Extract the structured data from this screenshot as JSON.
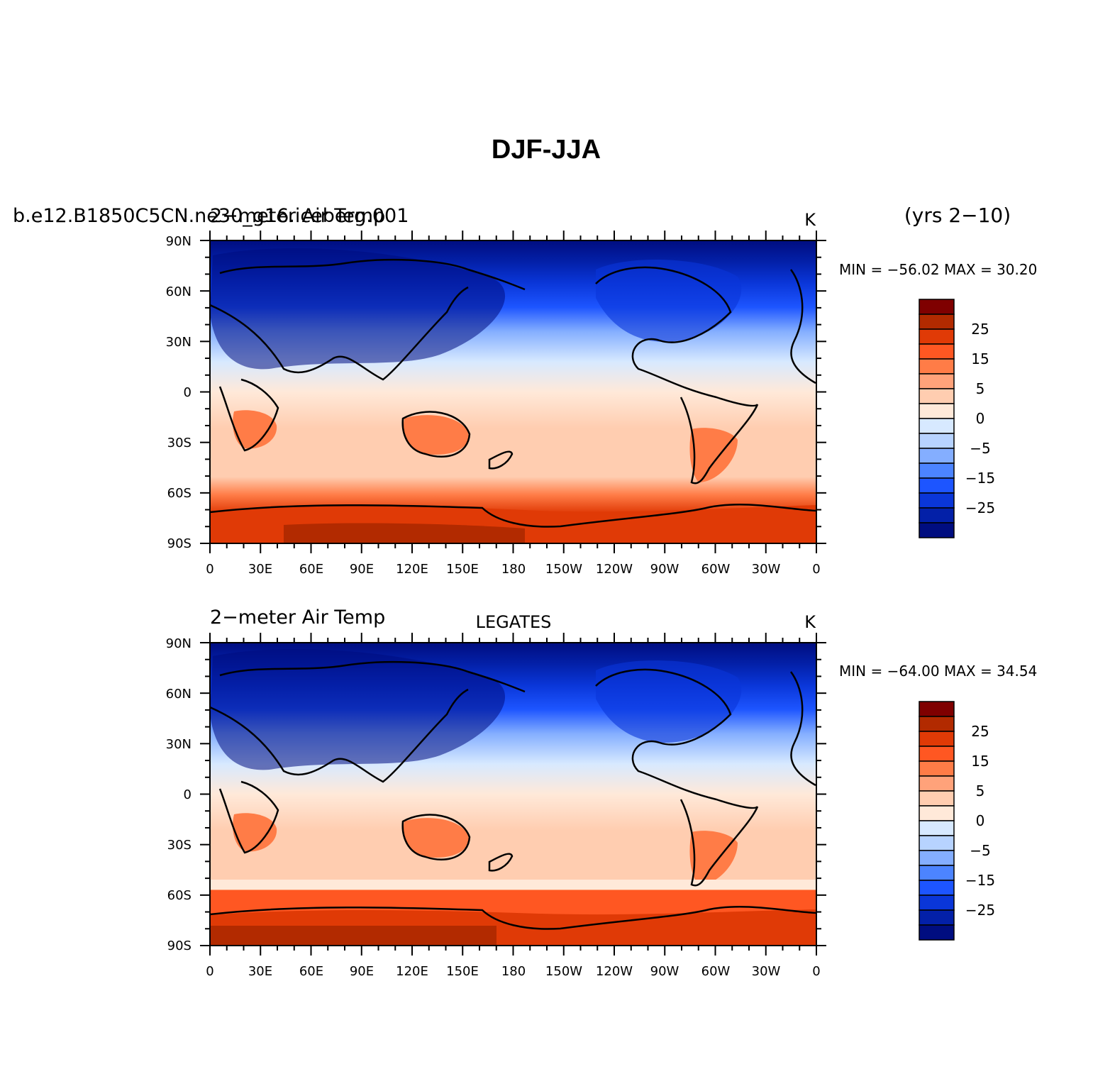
{
  "figure": {
    "title": "DJF-JJA",
    "period": "(yrs 2−10)"
  },
  "panels": [
    {
      "id": "model",
      "left_title": "2−meter Air Temp",
      "left_title_overprint": "b.e12.B1850C5CN.ne30_g16.iceberg.001",
      "center_title": "",
      "units": "K",
      "stats": "MIN = −56.02  MAX =   30.20"
    },
    {
      "id": "obs",
      "left_title": "2−meter Air Temp",
      "center_title": "LEGATES",
      "units": "K",
      "stats": "MIN = −64.00  MAX =   34.54"
    }
  ],
  "axes": {
    "lat_labels": [
      "90N",
      "60N",
      "30N",
      "0",
      "30S",
      "60S",
      "90S"
    ],
    "lon_labels": [
      "0",
      "30E",
      "60E",
      "90E",
      "120E",
      "150E",
      "180",
      "150W",
      "120W",
      "90W",
      "60W",
      "30W",
      "0"
    ]
  },
  "colorbar": {
    "labels": [
      "25",
      "15",
      "5",
      "0",
      "−5",
      "−15",
      "−25"
    ],
    "colors": [
      "#7f0000",
      "#b22a00",
      "#e03a06",
      "#ff5722",
      "#ff7c47",
      "#ffa27a",
      "#ffcdb0",
      "#ffe9d9",
      "#d7e9ff",
      "#b7d3ff",
      "#84aeff",
      "#4c84ff",
      "#1d55ff",
      "#0a36d8",
      "#0320a8",
      "#000d80"
    ]
  },
  "chart_data": [
    {
      "type": "heatmap",
      "title": "2−meter Air Temp",
      "units": "K",
      "x_ticks": [
        "0",
        "30E",
        "60E",
        "90E",
        "120E",
        "150E",
        "180",
        "150W",
        "120W",
        "90W",
        "60W",
        "30W",
        "0"
      ],
      "y_ticks": [
        "90N",
        "60N",
        "30N",
        "0",
        "30S",
        "60S",
        "90S"
      ],
      "min": -56.02,
      "max": 30.2,
      "contour_levels": [
        -30,
        -25,
        -20,
        -15,
        -10,
        -5,
        0,
        5,
        10,
        15,
        20,
        25,
        30
      ]
    },
    {
      "type": "heatmap",
      "title": "2−meter Air Temp",
      "subtitle": "LEGATES",
      "units": "K",
      "x_ticks": [
        "0",
        "30E",
        "60E",
        "90E",
        "120E",
        "150E",
        "180",
        "150W",
        "120W",
        "90W",
        "60W",
        "30W",
        "0"
      ],
      "y_ticks": [
        "90N",
        "60N",
        "30N",
        "0",
        "30S",
        "60S",
        "90S"
      ],
      "min": -64.0,
      "max": 34.54,
      "contour_levels": [
        -30,
        -25,
        -20,
        -15,
        -10,
        -5,
        0,
        5,
        10,
        15,
        20,
        25,
        30
      ]
    }
  ]
}
